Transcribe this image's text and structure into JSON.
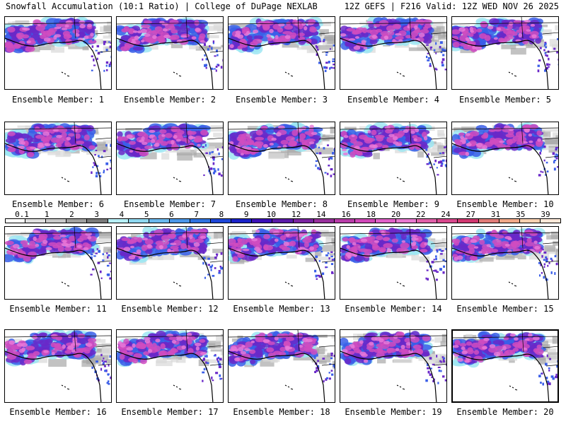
{
  "header": {
    "left": "Snowfall Accumulation (10:1 Ratio) | College of DuPage NEXLAB",
    "right": "12Z GEFS | F216 Valid: 12Z WED NOV 26 2025"
  },
  "members": [
    "Ensemble Member: 1",
    "Ensemble Member: 2",
    "Ensemble Member: 3",
    "Ensemble Member: 4",
    "Ensemble Member: 5",
    "Ensemble Member: 6",
    "Ensemble Member: 7",
    "Ensemble Member: 8",
    "Ensemble Member: 9",
    "Ensemble Member: 10",
    "Ensemble Member: 11",
    "Ensemble Member: 12",
    "Ensemble Member: 13",
    "Ensemble Member: 14",
    "Ensemble Member: 15",
    "Ensemble Member: 16",
    "Ensemble Member: 17",
    "Ensemble Member: 18",
    "Ensemble Member: 19",
    "Ensemble Member: 20"
  ],
  "colorbar": {
    "labels": [
      "0.1",
      "1",
      "2",
      "3",
      "4",
      "5",
      "6",
      "7",
      "8",
      "9",
      "10",
      "12",
      "14",
      "16",
      "18",
      "20",
      "22",
      "24",
      "27",
      "31",
      "35",
      "39"
    ],
    "colors": [
      "#ffffff",
      "#e0e0e0",
      "#c8c8c8",
      "#a0a0a0",
      "#7a7a7a",
      "#b8f0f8",
      "#8fd8f0",
      "#6ab8ee",
      "#4a96e8",
      "#2e72e0",
      "#1e46d8",
      "#1a22c8",
      "#3a10b8",
      "#5a1aa8",
      "#7a24a0",
      "#98309c",
      "#b83ca8",
      "#d048b8",
      "#e060c8",
      "#e878d0",
      "#e060a8",
      "#d8488c",
      "#d03870",
      "#e07c78",
      "#f0a888",
      "#f8d0b0",
      "#fde8d8"
    ]
  },
  "palette": {
    "gray_light": "#d8d8d8",
    "gray_mid": "#a8a8a8",
    "cyan": "#9ee6f2",
    "blue": "#3a5ee8",
    "purple": "#6a28c8",
    "magenta": "#d04cc0",
    "pink": "#e878d8"
  }
}
